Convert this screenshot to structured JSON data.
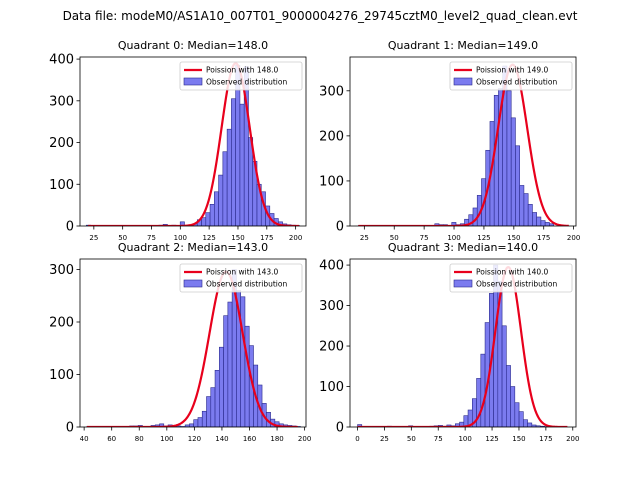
{
  "figure": {
    "suptitle": "Data file: modeM0/AS1A10_007T01_9000004276_29745cztM0_level2_quad_clean.evt"
  },
  "style": {
    "bar_fill": "#7b7bef",
    "bar_edge": "#2a2a8c",
    "line_color": "#e8001c"
  },
  "chart_data": [
    {
      "type": "bar",
      "title": "Quadrant 0: Median=148.0",
      "xlabel": "",
      "ylabel": "",
      "xlim": [
        13,
        209
      ],
      "ylim": [
        0,
        405
      ],
      "xticks": [
        25,
        50,
        75,
        100,
        125,
        150,
        175,
        200
      ],
      "yticks": [
        0,
        100,
        200,
        300,
        400
      ],
      "legend": {
        "placement": "top-right",
        "entries": [
          "Poission with 148.0",
          "Observed distribution"
        ]
      },
      "series": [
        {
          "name": "Poission with 148.0",
          "kind": "line",
          "mean": 148.0,
          "peak": 390,
          "x_range": [
            20,
            203
          ]
        },
        {
          "name": "Observed distribution",
          "kind": "histogram",
          "bin_width": 3.7,
          "x_start": 18.5,
          "values": [
            2,
            1,
            0,
            1,
            1,
            0,
            0,
            1,
            0,
            1,
            1,
            0,
            1,
            0,
            0,
            1,
            0,
            2,
            4,
            1,
            2,
            1,
            10,
            1,
            3,
            5,
            15,
            20,
            32,
            52,
            82,
            122,
            178,
            232,
            305,
            385,
            292,
            382,
            212,
            155,
            100,
            82,
            48,
            30,
            18,
            10,
            5,
            3,
            2,
            1
          ]
        }
      ]
    },
    {
      "type": "bar",
      "title": "Quadrant 1: Median=149.0",
      "xlabel": "",
      "ylabel": "",
      "xlim": [
        13,
        202
      ],
      "ylim": [
        0,
        375
      ],
      "xticks": [
        25,
        50,
        75,
        100,
        125,
        150,
        175,
        200
      ],
      "yticks": [
        0,
        100,
        200,
        300
      ],
      "legend": {
        "placement": "top-right",
        "entries": [
          "Poission with 149.0",
          "Observed distribution"
        ]
      },
      "series": [
        {
          "name": "Poission with 149.0",
          "kind": "line",
          "mean": 149.0,
          "peak": 358,
          "x_range": [
            20,
            196
          ]
        },
        {
          "name": "Observed distribution",
          "kind": "histogram",
          "bin_width": 3.55,
          "x_start": 20,
          "values": [
            1,
            0,
            1,
            0,
            0,
            1,
            0,
            1,
            0,
            0,
            1,
            0,
            0,
            1,
            0,
            0,
            0,
            0,
            5,
            3,
            3,
            1,
            8,
            3,
            5,
            15,
            25,
            40,
            68,
            105,
            168,
            232,
            290,
            305,
            355,
            300,
            240,
            178,
            90,
            72,
            48,
            30,
            20,
            12,
            8,
            5
          ]
        }
      ]
    },
    {
      "type": "bar",
      "title": "Quadrant 2: Median=143.0",
      "xlabel": "",
      "ylabel": "",
      "xlim": [
        37,
        201
      ],
      "ylim": [
        0,
        320
      ],
      "xticks": [
        40,
        60,
        80,
        100,
        120,
        140,
        160,
        180,
        200
      ],
      "yticks": [
        0,
        100,
        200,
        300
      ],
      "legend": {
        "placement": "top-right",
        "entries": [
          "Poission with 143.0",
          "Observed distribution"
        ]
      },
      "series": [
        {
          "name": "Poission with 143.0",
          "kind": "line",
          "mean": 143.0,
          "peak": 296,
          "x_range": [
            42,
            195
          ]
        },
        {
          "name": "Observed distribution",
          "kind": "histogram",
          "bin_width": 3.1,
          "x_start": 42,
          "values": [
            1,
            0,
            0,
            1,
            0,
            0,
            1,
            1,
            0,
            1,
            2,
            2,
            3,
            1,
            0,
            3,
            4,
            6,
            2,
            4,
            3,
            2,
            1,
            4,
            6,
            14,
            18,
            30,
            58,
            75,
            108,
            152,
            212,
            238,
            300,
            260,
            248,
            192,
            155,
            118,
            80,
            45,
            28,
            15,
            10,
            6,
            4,
            3,
            2,
            1
          ]
        }
      ]
    },
    {
      "type": "bar",
      "title": "Quadrant 3: Median=140.0",
      "xlabel": "",
      "ylabel": "",
      "xlim": [
        -7,
        203
      ],
      "ylim": [
        0,
        415
      ],
      "xticks": [
        0,
        25,
        50,
        75,
        100,
        125,
        150,
        175,
        200
      ],
      "yticks": [
        0,
        100,
        200,
        300,
        400
      ],
      "legend": {
        "placement": "top-right",
        "entries": [
          "Poission with 140.0",
          "Observed distribution"
        ]
      },
      "series": [
        {
          "name": "Poission with 140.0",
          "kind": "line",
          "mean": 140.0,
          "peak": 395,
          "x_range": [
            0,
            195
          ]
        },
        {
          "name": "Observed distribution",
          "kind": "histogram",
          "bin_width": 3.95,
          "x_start": 0,
          "values": [
            6,
            0,
            0,
            1,
            0,
            1,
            0,
            2,
            0,
            1,
            0,
            0,
            3,
            1,
            0,
            1,
            0,
            2,
            3,
            4,
            2,
            5,
            3,
            8,
            12,
            28,
            42,
            70,
            120,
            180,
            258,
            330,
            400,
            360,
            250,
            152,
            100,
            60,
            38,
            18,
            10,
            5,
            3,
            2,
            1
          ]
        }
      ]
    }
  ]
}
